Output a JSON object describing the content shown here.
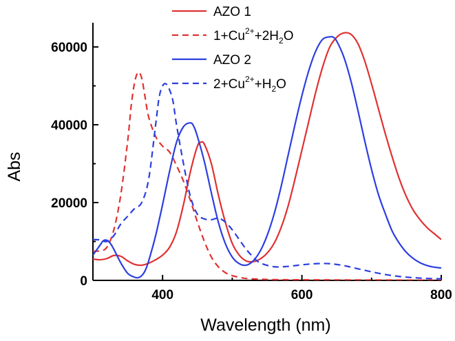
{
  "chart_data": {
    "type": "line",
    "title": "",
    "xlabel": "Wavelength (nm)",
    "ylabel": "Abs",
    "xlim": [
      300,
      800
    ],
    "ylim": [
      0,
      68000
    ],
    "x_ticks": [
      400,
      600,
      800
    ],
    "x_tick_labels": [
      "400",
      "600",
      "800"
    ],
    "y_ticks": [
      0,
      20000,
      40000,
      60000
    ],
    "y_tick_labels": [
      "0",
      "20000",
      "40000",
      "60000"
    ],
    "grid": false,
    "legend_position": "top-right",
    "series": [
      {
        "name": "AZO 1",
        "legend": {
          "main": "AZO 1"
        },
        "color": "#e03030",
        "dash": "solid",
        "x": [
          300,
          310,
          320,
          330,
          340,
          350,
          360,
          370,
          380,
          390,
          400,
          410,
          420,
          430,
          440,
          450,
          455,
          460,
          470,
          480,
          490,
          500,
          510,
          520,
          530,
          540,
          550,
          560,
          570,
          580,
          590,
          600,
          610,
          620,
          630,
          640,
          650,
          660,
          670,
          680,
          690,
          700,
          710,
          720,
          730,
          740,
          750,
          760,
          770,
          780,
          790,
          800
        ],
        "y": [
          5500,
          5300,
          5600,
          6400,
          6200,
          5000,
          4100,
          3900,
          4400,
          5300,
          6500,
          8500,
          12500,
          19500,
          28000,
          34500,
          35500,
          35000,
          30000,
          22000,
          15000,
          9500,
          6500,
          5000,
          4800,
          5500,
          7000,
          9500,
          13500,
          19000,
          26000,
          33500,
          41000,
          48500,
          55000,
          60000,
          62500,
          63600,
          63300,
          61000,
          56500,
          50500,
          44000,
          37500,
          31500,
          26000,
          21500,
          18000,
          15500,
          13500,
          12000,
          10500
        ]
      },
      {
        "name": "1+Cu2++2H2O",
        "legend": {
          "pre": "1+Cu",
          "sup": "2+",
          "mid": "+2H",
          "sub": "2",
          "post": "O"
        },
        "color": "#e03030",
        "dash": "dashed",
        "x": [
          300,
          310,
          320,
          330,
          340,
          350,
          355,
          360,
          365,
          370,
          375,
          380,
          390,
          400,
          410,
          420,
          430,
          440,
          450,
          460,
          470,
          480,
          490,
          500,
          510,
          520,
          540,
          560,
          600,
          700,
          800
        ],
        "y": [
          7500,
          7600,
          8500,
          13000,
          22000,
          36000,
          45000,
          51000,
          53500,
          52000,
          47000,
          42000,
          37000,
          34500,
          33000,
          29500,
          25500,
          20500,
          15000,
          10000,
          6000,
          3500,
          2000,
          1200,
          800,
          500,
          300,
          200,
          150,
          100,
          50
        ]
      },
      {
        "name": "AZO 2",
        "legend": {
          "main": "AZO 2"
        },
        "color": "#2b3ee0",
        "dash": "solid",
        "x": [
          300,
          310,
          315,
          320,
          325,
          330,
          340,
          350,
          360,
          365,
          370,
          375,
          380,
          390,
          400,
          410,
          420,
          430,
          440,
          445,
          450,
          460,
          470,
          480,
          490,
          500,
          510,
          520,
          530,
          540,
          550,
          560,
          570,
          580,
          590,
          600,
          610,
          620,
          630,
          640,
          645,
          650,
          660,
          670,
          680,
          690,
          700,
          710,
          720,
          730,
          740,
          750,
          760,
          770,
          780,
          790,
          800
        ],
        "y": [
          6500,
          9000,
          10200,
          10300,
          9500,
          8000,
          4500,
          1800,
          800,
          700,
          1200,
          2500,
          5000,
          11500,
          19500,
          28000,
          35500,
          39500,
          40500,
          39500,
          37000,
          30500,
          22500,
          15000,
          9500,
          6000,
          4300,
          3900,
          5000,
          7500,
          11500,
          17000,
          24000,
          32000,
          40000,
          47500,
          54000,
          59000,
          62000,
          62600,
          62500,
          61500,
          57500,
          51500,
          44000,
          36000,
          28500,
          22000,
          17000,
          12500,
          9500,
          7200,
          5600,
          4500,
          3800,
          3400,
          3200
        ]
      },
      {
        "name": "2+Cu2++H2O",
        "legend": {
          "pre": "2+Cu",
          "sup": "2+",
          "mid": "+H",
          "sub": "2",
          "post": "O"
        },
        "color": "#2b3ee0",
        "dash": "dashed",
        "x": [
          300,
          310,
          320,
          330,
          340,
          350,
          360,
          370,
          380,
          390,
          395,
          400,
          405,
          410,
          415,
          420,
          430,
          440,
          450,
          460,
          470,
          480,
          490,
          500,
          510,
          520,
          530,
          540,
          560,
          580,
          600,
          620,
          640,
          660,
          680,
          700,
          720,
          740,
          760,
          780,
          800
        ],
        "y": [
          10500,
          10400,
          10000,
          11500,
          14500,
          16500,
          18500,
          20000,
          26000,
          40000,
          47000,
          50000,
          50500,
          49000,
          46000,
          40000,
          30000,
          21500,
          17000,
          15800,
          15600,
          16000,
          15000,
          13000,
          10500,
          8000,
          6000,
          4500,
          3500,
          3600,
          4000,
          4300,
          4300,
          3800,
          3000,
          2200,
          1500,
          1000,
          700,
          500,
          400
        ]
      }
    ]
  }
}
